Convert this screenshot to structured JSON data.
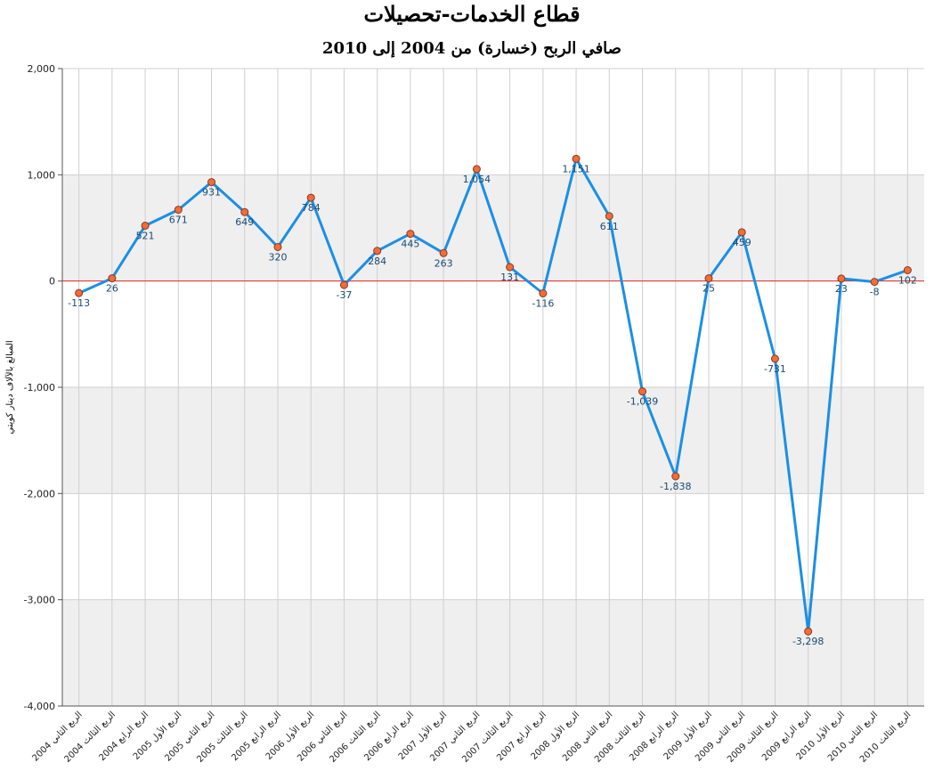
{
  "chart_data": {
    "type": "line",
    "title": "قطاع الخدمات-تحصيلات",
    "subtitle": "صافي الربح (خسارة) من 2004 إلى 2010",
    "ylabel": "المبالغ بالآلاف دينار كويتي",
    "xlabel": "",
    "ylim": [
      -4000,
      2000
    ],
    "yticks": [
      "2,000",
      "1,000",
      "0",
      "-1,000",
      "-2,000",
      "-3,000",
      "-4,000"
    ],
    "ytick_values": [
      2000,
      1000,
      0,
      -1000,
      -2000,
      -3000,
      -4000
    ],
    "categories": [
      "الربع الثاني 2004",
      "الربع الثالث 2004",
      "الربع الرابع 2004",
      "الربع الأول 2005",
      "الربع الثاني 2005",
      "الربع الثالث 2005",
      "الربع الرابع 2005",
      "الربع الأول 2006",
      "الربع الثاني 2006",
      "الربع الثالث 2006",
      "الربع الرابع 2006",
      "الربع الأول 2007",
      "الربع الثاني 2007",
      "الربع الثالث 2007",
      "الربع الرابع 2007",
      "الربع الأول 2008",
      "الربع الثاني 2008",
      "الربع الثالث 2008",
      "الربع الرابع 2008",
      "الربع الأول 2009",
      "الربع الثاني 2009",
      "الربع الثالث 2009",
      "الربع الرابع 2009",
      "الربع الأول 2010",
      "الربع الثاني 2010",
      "الربع الثالث 2010"
    ],
    "values": [
      -113,
      26,
      521,
      671,
      931,
      649,
      320,
      784,
      -37,
      284,
      445,
      263,
      1054,
      131,
      -116,
      1151,
      611,
      -1039,
      -1838,
      25,
      459,
      -731,
      -3298,
      23,
      -8,
      102
    ],
    "value_labels": [
      "-113",
      "26",
      "521",
      "671",
      "931",
      "649",
      "320",
      "784",
      "-37",
      "284",
      "445",
      "263",
      "1,054",
      "131",
      "-116",
      "1,151",
      "611",
      "-1,039",
      "-1,838",
      "25",
      "459",
      "-731",
      "-3,298",
      "23",
      "-8",
      "102"
    ],
    "grid": true,
    "legend": "none",
    "colors": {
      "line": "#1b8fe6",
      "marker_fill": "#f26b3a",
      "marker_stroke": "#8a3a1c",
      "zero_line": "#e8231f",
      "band": "#efefef",
      "grid": "#cfcfcf",
      "axis": "#555555"
    }
  }
}
